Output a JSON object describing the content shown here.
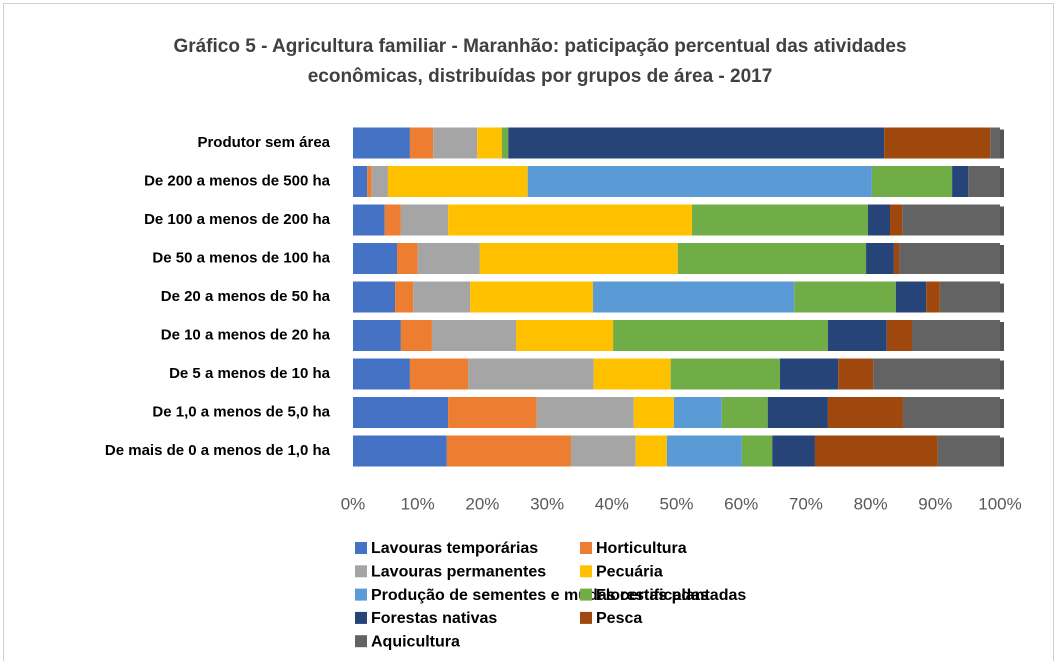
{
  "chart_data": {
    "type": "stacked_barh",
    "title": "Gráfico 5 - Agricultura familiar - Maranhão: paticipação percentual das atividades econômicas, distribuídas por grupos de área - 2017",
    "categories": [
      "Produtor sem área",
      "De 200 a menos de 500 ha",
      "De 100 a menos de 200 ha",
      "De 50 a menos de 100 ha",
      "De 20 a menos de 50 ha",
      "De 10 a menos de 20 ha",
      "De 5 a menos de 10 ha",
      "De 1,0 a menos de 5,0 ha",
      "De mais de 0 a menos de 1,0 ha"
    ],
    "series": [
      {
        "name": "Lavouras temporárias",
        "color": "#4472c4",
        "values": [
          8.8,
          2.2,
          4.9,
          6.8,
          6.5,
          7.4,
          8.8,
          14.7,
          14.5
        ]
      },
      {
        "name": "Horticultura",
        "color": "#ed7d31",
        "values": [
          3.6,
          0.7,
          2.5,
          3.2,
          2.8,
          4.8,
          9.0,
          13.7,
          19.2
        ]
      },
      {
        "name": "Lavouras permanentes",
        "color": "#a5a5a5",
        "values": [
          6.8,
          2.5,
          7.3,
          9.6,
          8.8,
          13.0,
          19.4,
          15.0,
          10.0
        ]
      },
      {
        "name": "Pecuária",
        "color": "#ffc000",
        "values": [
          3.8,
          21.6,
          37.7,
          30.6,
          19.0,
          15.0,
          11.9,
          6.2,
          4.8
        ]
      },
      {
        "name": "Produção de sementes e mudas certificadas",
        "color": "#5b9bd5",
        "values": [
          0,
          53.2,
          0,
          0,
          31.1,
          0,
          0,
          7.4,
          11.6
        ]
      },
      {
        "name": "Florestas plantadas",
        "color": "#70ad47",
        "values": [
          1.0,
          12.4,
          27.2,
          29.1,
          15.7,
          33.2,
          16.9,
          7.1,
          4.7
        ]
      },
      {
        "name": "Forestas nativas",
        "color": "#264478",
        "values": [
          58.1,
          2.5,
          3.4,
          4.3,
          4.7,
          9.1,
          9.0,
          9.3,
          6.6
        ]
      },
      {
        "name": "Pesca",
        "color": "#9e480e",
        "values": [
          16.4,
          0,
          1.9,
          0.8,
          2.1,
          3.9,
          5.4,
          11.6,
          19.0
        ]
      },
      {
        "name": "Aquicultura",
        "color": "#636363",
        "values": [
          1.5,
          4.9,
          15.1,
          15.6,
          9.3,
          13.6,
          19.6,
          15.0,
          9.6
        ]
      }
    ],
    "xlim": [
      0,
      100
    ],
    "xticks": [
      {
        "value": 0,
        "label": "0%"
      },
      {
        "value": 10,
        "label": "10%"
      },
      {
        "value": 20,
        "label": "20%"
      },
      {
        "value": 30,
        "label": "30%"
      },
      {
        "value": 40,
        "label": "40%"
      },
      {
        "value": 50,
        "label": "50%"
      },
      {
        "value": 60,
        "label": "60%"
      },
      {
        "value": 70,
        "label": "70%"
      },
      {
        "value": 80,
        "label": "80%"
      },
      {
        "value": 90,
        "label": "90%"
      },
      {
        "value": 100,
        "label": "100%"
      }
    ],
    "legend": "bottom"
  }
}
